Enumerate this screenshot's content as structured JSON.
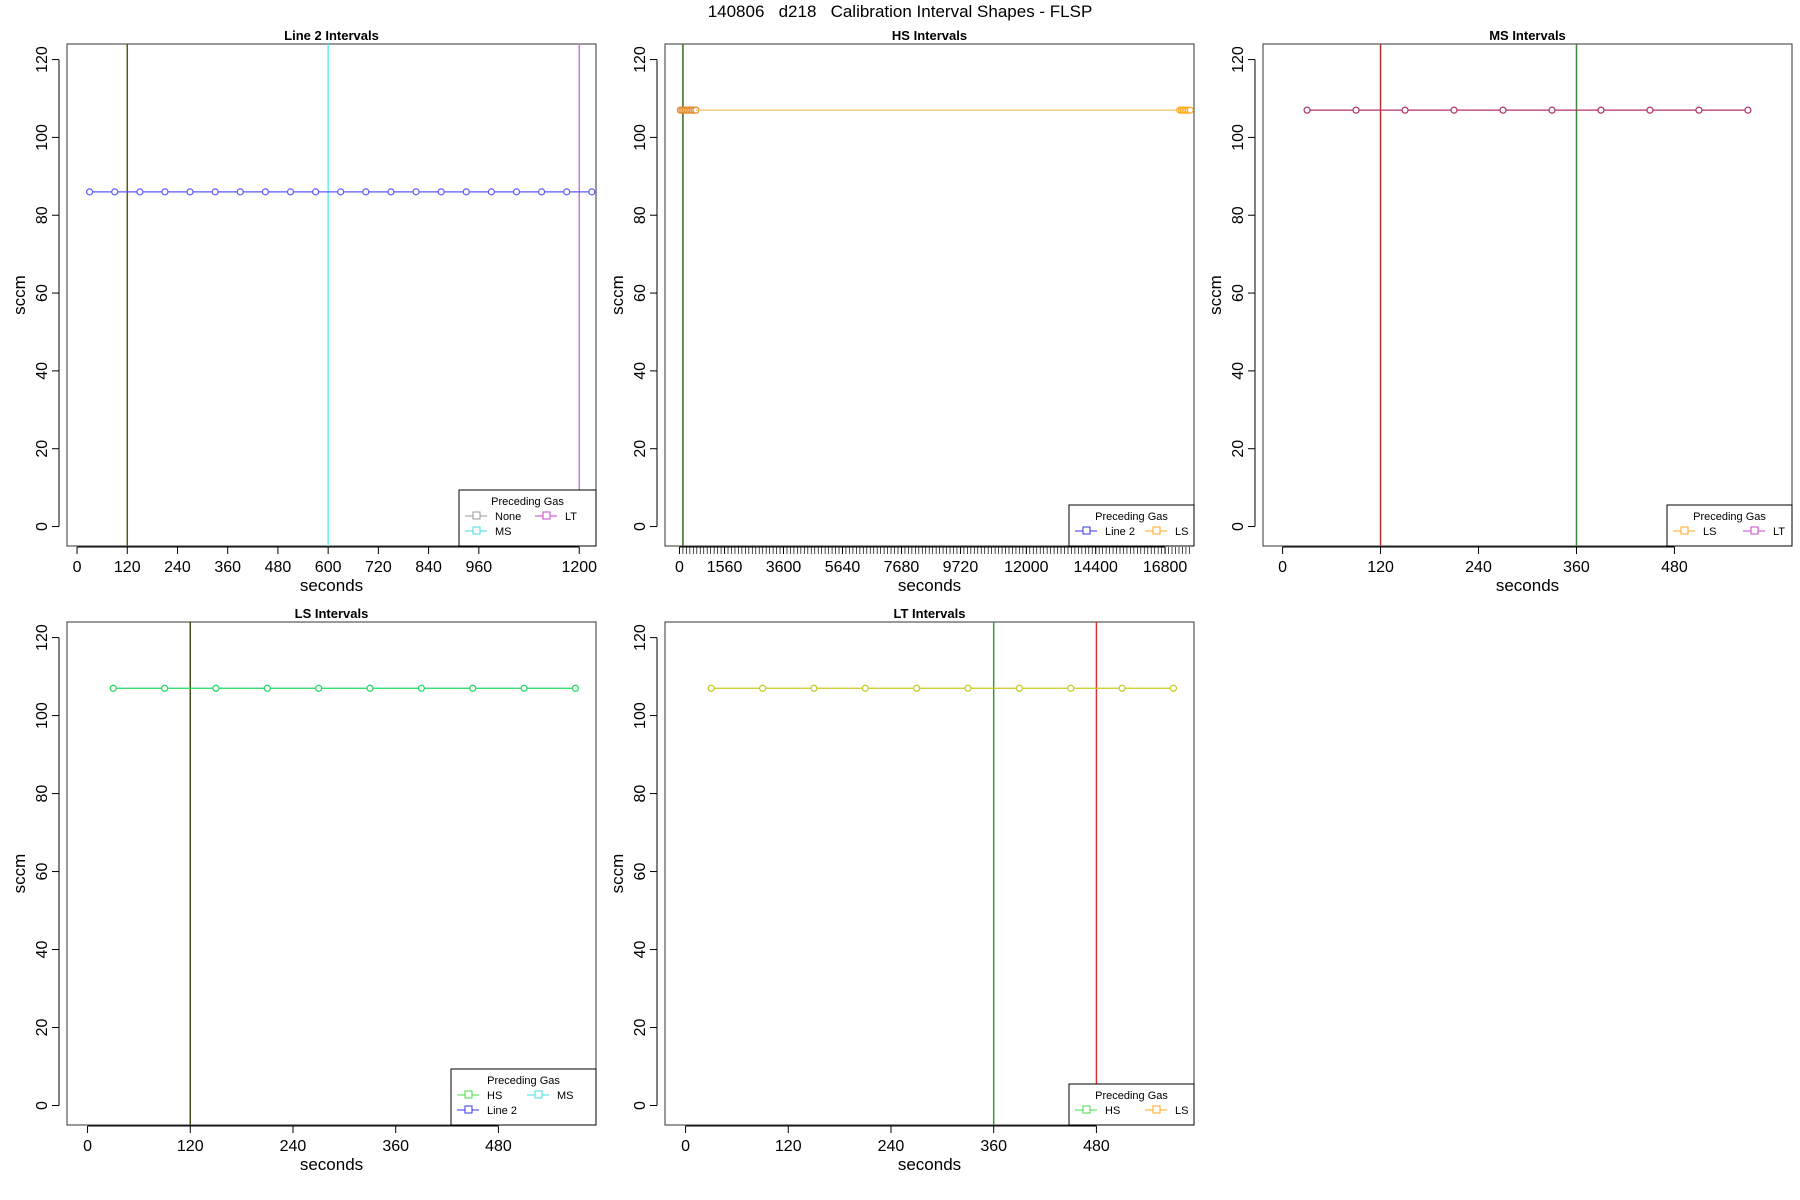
{
  "figure_title": "140806   d218   Calibration Interval Shapes - FLSP",
  "chart_data": [
    {
      "type": "line",
      "title": "Line 2 Intervals",
      "xlabel": "seconds",
      "ylabel": "sccm",
      "xlim": [
        -24,
        1240
      ],
      "ylim": [
        -5,
        124
      ],
      "x_ticks": [
        0,
        120,
        240,
        360,
        480,
        600,
        720,
        840,
        960,
        1200
      ],
      "y_ticks": [
        0,
        20,
        40,
        60,
        80,
        100,
        120
      ],
      "series": [
        {
          "color": "#5b5bff",
          "x": [
            30,
            90,
            150,
            210,
            270,
            330,
            390,
            450,
            510,
            570,
            630,
            690,
            750,
            810,
            870,
            930,
            990,
            1050,
            1110,
            1170,
            1230
          ],
          "y": [
            86,
            86,
            86,
            86,
            86,
            86,
            86,
            86,
            86,
            86,
            86,
            86,
            86,
            86,
            86,
            86,
            86,
            86,
            86,
            86,
            86
          ]
        }
      ],
      "vlines": [
        {
          "x": 120,
          "color": "#5a5a1a"
        },
        {
          "x": 600,
          "color": "#66eeee"
        },
        {
          "x": 1200,
          "color": "#cc77ee"
        }
      ],
      "legend": {
        "title": "Preceding Gas",
        "position": "bottom-right",
        "entries": [
          {
            "label": "None",
            "color": "#999999"
          },
          {
            "label": "LT",
            "color": "#cc44cc"
          },
          {
            "label": "MS",
            "color": "#44dddd"
          }
        ]
      }
    },
    {
      "type": "line",
      "title": "HS Intervals",
      "xlabel": "seconds",
      "ylabel": "sccm",
      "xlim": [
        -500,
        17800
      ],
      "ylim": [
        -5,
        124
      ],
      "x_ticks": [
        0,
        1560,
        3600,
        5640,
        7680,
        9720,
        12000,
        14400,
        16800
      ],
      "y_ticks": [
        0,
        20,
        40,
        60,
        80,
        100,
        120
      ],
      "series": [
        {
          "color": "#e38a2a",
          "x": [
            30,
            90,
            150,
            210,
            270,
            330,
            390,
            450,
            510,
            570
          ],
          "y": [
            107,
            107,
            107,
            107,
            107,
            107,
            107,
            107,
            107,
            107
          ]
        },
        {
          "color": "#f0c060",
          "x": [
            570,
            17310
          ],
          "y": [
            107,
            107
          ]
        },
        {
          "color": "#ffaa22",
          "x": [
            17310,
            17370,
            17430,
            17490,
            17550,
            17610,
            17670
          ],
          "y": [
            107,
            107,
            107,
            107,
            107,
            107,
            107
          ]
        }
      ],
      "vlines": [
        {
          "x": 120,
          "color": "#3a6a1a"
        }
      ],
      "legend": {
        "title": "Preceding Gas",
        "position": "bottom-right",
        "entries": [
          {
            "label": "Line 2",
            "color": "#3333ee"
          },
          {
            "label": "LS",
            "color": "#ffaa22"
          }
        ]
      }
    },
    {
      "type": "line",
      "title": "MS Intervals",
      "xlabel": "seconds",
      "ylabel": "sccm",
      "xlim": [
        -24,
        624
      ],
      "ylim": [
        -5,
        124
      ],
      "x_ticks": [
        0,
        120,
        240,
        360,
        480
      ],
      "y_ticks": [
        0,
        20,
        40,
        60,
        80,
        100,
        120
      ],
      "series": [
        {
          "color": "#b03070",
          "x": [
            30,
            90,
            150,
            210,
            270,
            330,
            390,
            450,
            510,
            570
          ],
          "y": [
            107,
            107,
            107,
            107,
            107,
            107,
            107,
            107,
            107,
            107
          ]
        }
      ],
      "vlines": [
        {
          "x": 120,
          "color": "#b03030"
        },
        {
          "x": 360,
          "color": "#3a8a3a"
        }
      ],
      "legend": {
        "title": "Preceding Gas",
        "position": "bottom-right",
        "entries": [
          {
            "label": "LS",
            "color": "#ffaa22"
          },
          {
            "label": "LT",
            "color": "#cc44cc"
          }
        ]
      }
    },
    {
      "type": "line",
      "title": "LS Intervals",
      "xlabel": "seconds",
      "ylabel": "sccm",
      "xlim": [
        -24,
        594
      ],
      "ylim": [
        -5,
        124
      ],
      "x_ticks": [
        0,
        120,
        240,
        360,
        480
      ],
      "y_ticks": [
        0,
        20,
        40,
        60,
        80,
        100,
        120
      ],
      "series": [
        {
          "color": "#1ed760",
          "x": [
            30,
            90,
            150,
            210,
            270,
            330,
            390,
            450,
            510,
            570
          ],
          "y": [
            107,
            107,
            107,
            107,
            107,
            107,
            107,
            107,
            107,
            107
          ]
        }
      ],
      "vlines": [
        {
          "x": 120,
          "color": "#4a4a1a"
        }
      ],
      "legend": {
        "title": "Preceding Gas",
        "position": "bottom-right",
        "entries": [
          {
            "label": "HS",
            "color": "#44dd44"
          },
          {
            "label": "MS",
            "color": "#44dddd"
          },
          {
            "label": "Line 2",
            "color": "#3333ee"
          }
        ]
      }
    },
    {
      "type": "line",
      "title": "LT Intervals",
      "xlabel": "seconds",
      "ylabel": "sccm",
      "xlim": [
        -24,
        594
      ],
      "ylim": [
        -5,
        124
      ],
      "x_ticks": [
        0,
        120,
        240,
        360,
        480
      ],
      "y_ticks": [
        0,
        20,
        40,
        60,
        80,
        100,
        120
      ],
      "series": [
        {
          "color": "#c8c820",
          "x": [
            30,
            90,
            150,
            210,
            270,
            330,
            390,
            450,
            510,
            570
          ],
          "y": [
            107,
            107,
            107,
            107,
            107,
            107,
            107,
            107,
            107,
            107
          ]
        }
      ],
      "vlines": [
        {
          "x": 360,
          "color": "#3a9a3a"
        },
        {
          "x": 480,
          "color": "#dd3333"
        }
      ],
      "legend": {
        "title": "Preceding Gas",
        "position": "bottom-right",
        "entries": [
          {
            "label": "HS",
            "color": "#44dd44"
          },
          {
            "label": "LS",
            "color": "#ffaa22"
          }
        ]
      }
    }
  ]
}
